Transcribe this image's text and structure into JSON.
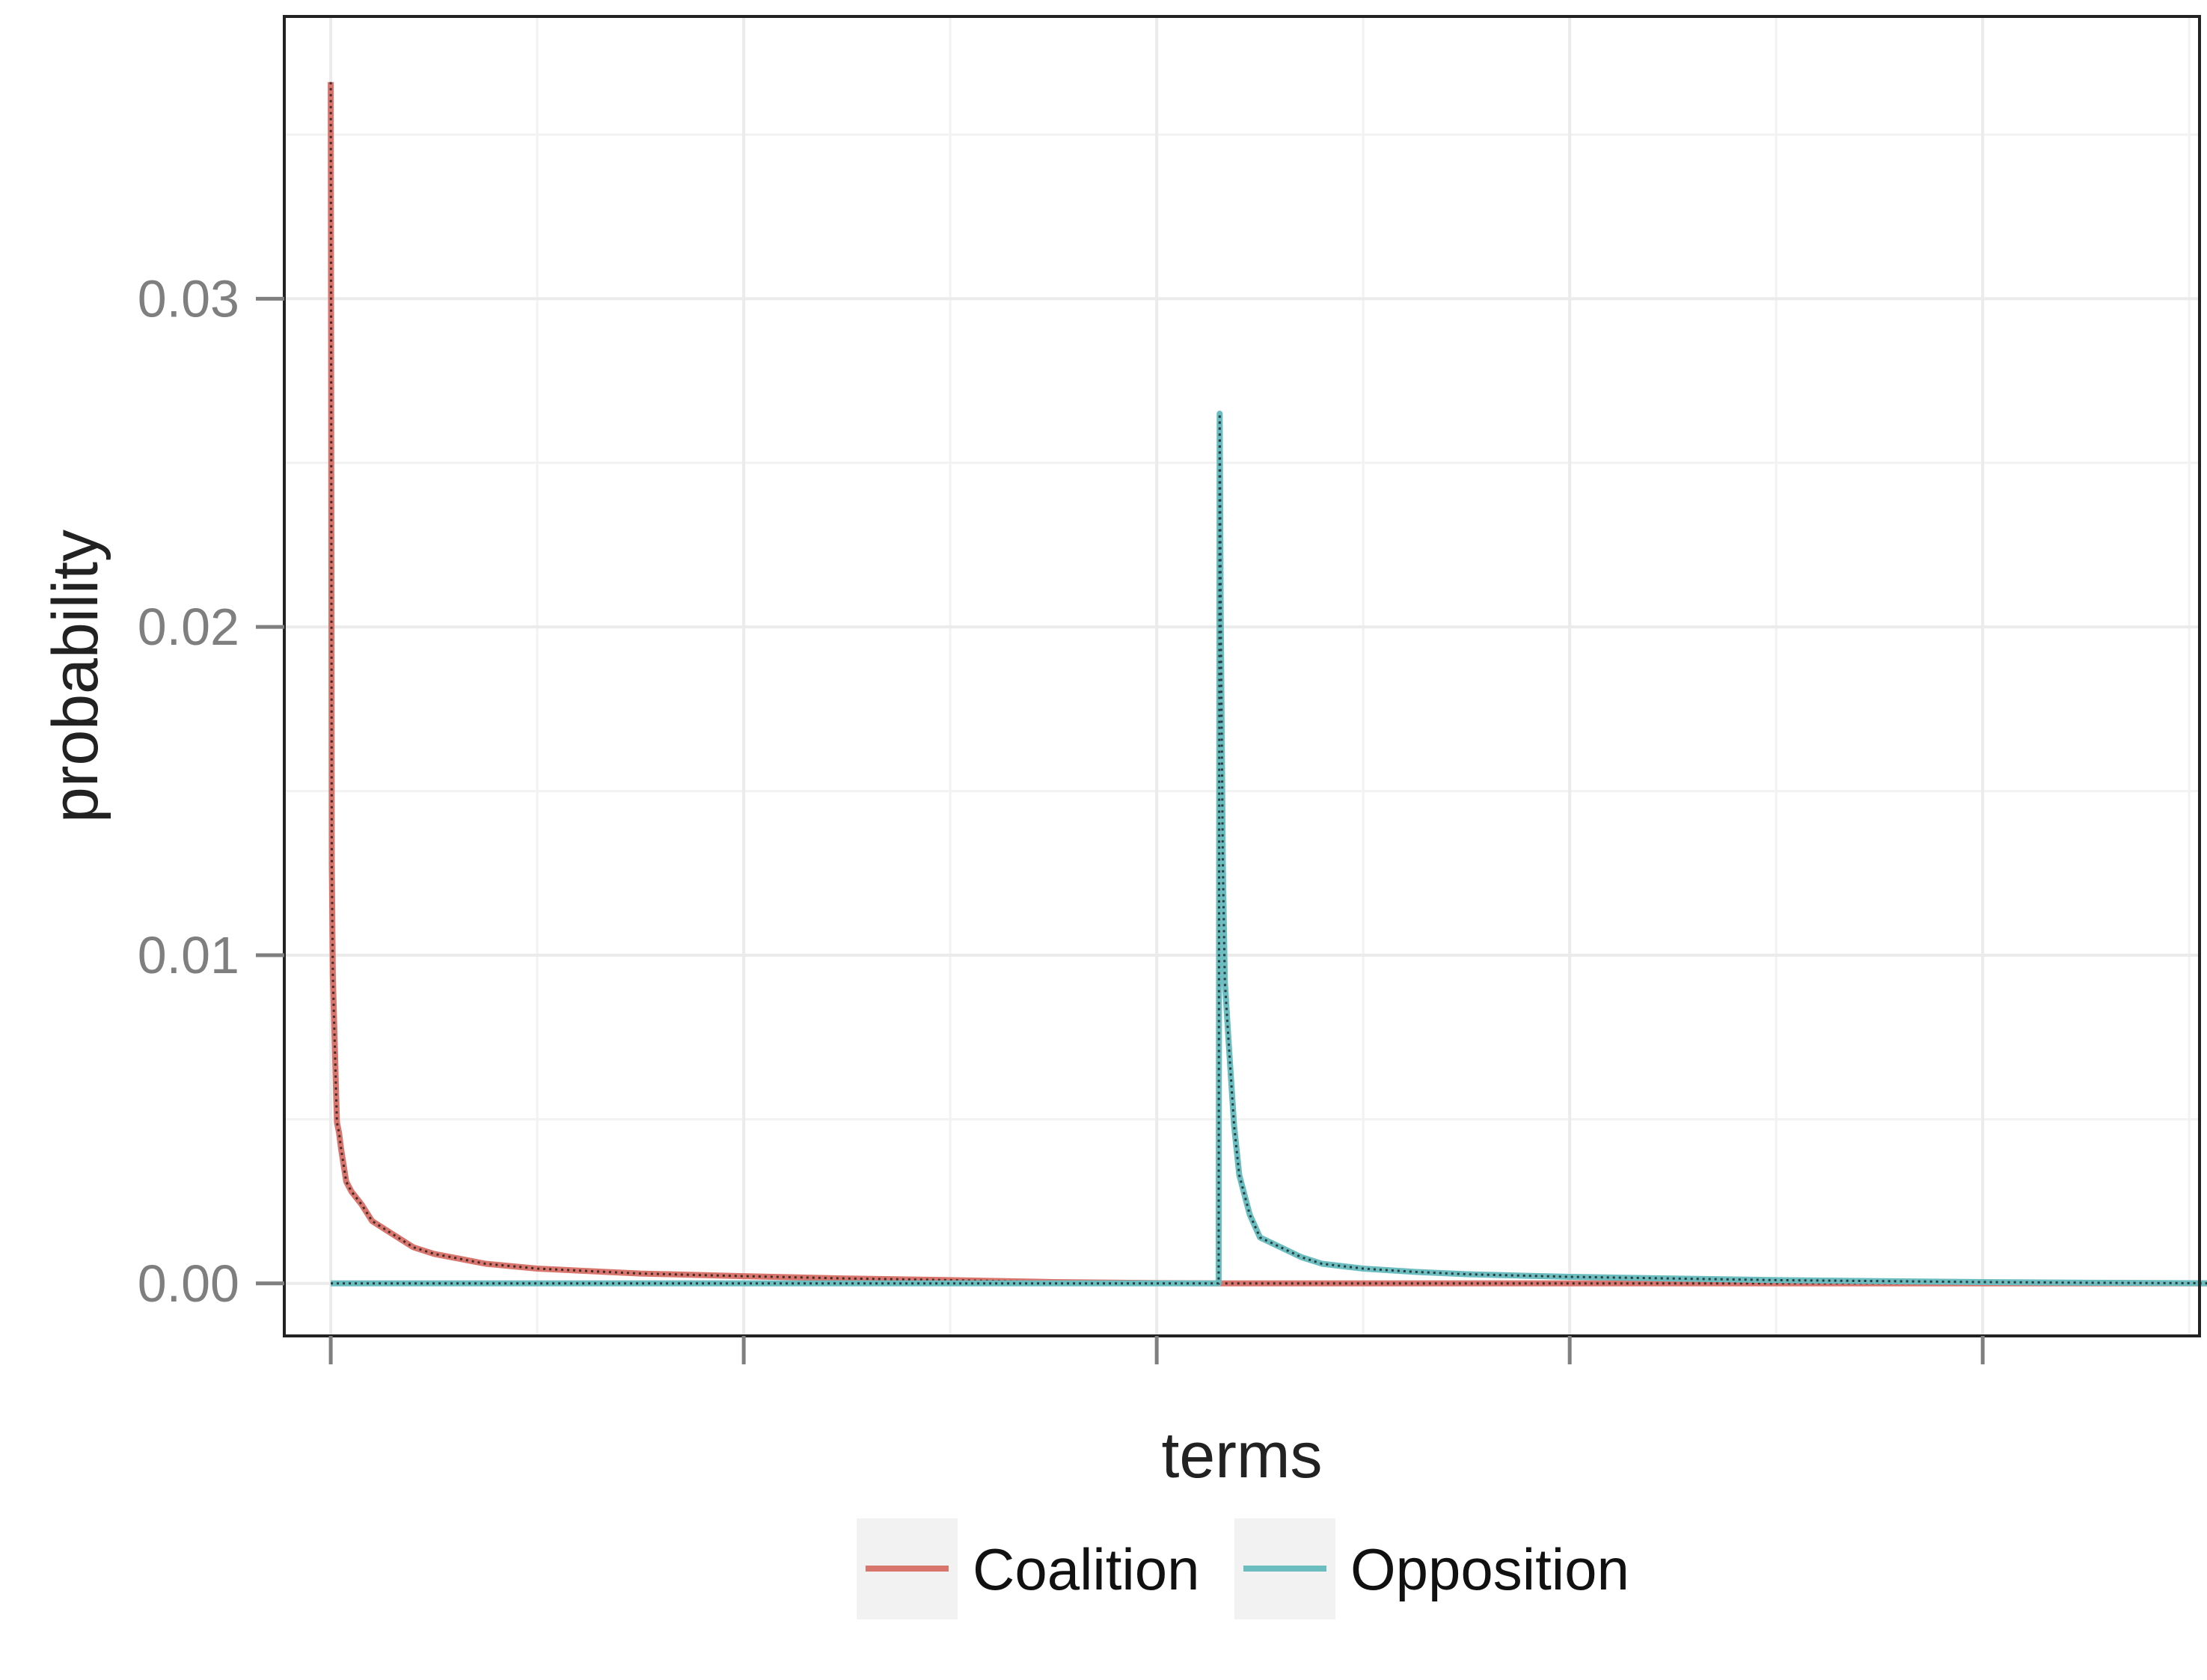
{
  "chart_data": {
    "type": "line",
    "title": "",
    "xlabel": "terms",
    "ylabel": "probability",
    "ylim": [
      -0.0016,
      0.0386
    ],
    "yticks": [
      0.0,
      0.01,
      0.02,
      0.03
    ],
    "ytick_labels": [
      "0.00",
      "0.01",
      "0.02",
      "0.03"
    ],
    "xlim": [
      -45,
      1810
    ],
    "xticks": [
      0,
      400,
      800,
      1200,
      1600
    ],
    "xtick_labels": [
      "",
      "",
      "",
      "",
      ""
    ],
    "grid": true,
    "legend": {
      "position": "bottom"
    },
    "series": [
      {
        "name": "Coalition",
        "color": "#d8766e",
        "x": [
          0,
          1,
          2,
          3,
          4,
          5,
          6,
          8,
          10,
          15,
          20,
          30,
          40,
          60,
          80,
          100,
          150,
          200,
          300,
          400,
          500,
          600,
          700,
          800,
          860,
          1000,
          1200,
          1400,
          1600,
          1850
        ],
        "values": [
          0.0366,
          0.0128,
          0.0094,
          0.0083,
          0.0072,
          0.006,
          0.0049,
          0.0046,
          0.0041,
          0.0031,
          0.0028,
          0.0024,
          0.0019,
          0.0015,
          0.0011,
          0.0009,
          0.0006,
          0.00045,
          0.0003,
          0.00022,
          0.00015,
          0.0001,
          4e-05,
          1e-05,
          0.0,
          0.0,
          0.0,
          0.0,
          0.0,
          0.0
        ]
      },
      {
        "name": "Opposition",
        "color": "#6bbdc0",
        "x": [
          0,
          200,
          400,
          600,
          860,
          861,
          862,
          864,
          866,
          870,
          875,
          880,
          890,
          900,
          920,
          940,
          960,
          1000,
          1050,
          1100,
          1200,
          1300,
          1400,
          1500,
          1600,
          1700,
          1850
        ],
        "values": [
          0.0,
          0.0,
          0.0,
          0.0,
          0.0,
          0.0265,
          0.0204,
          0.0128,
          0.0092,
          0.0072,
          0.0048,
          0.0033,
          0.0021,
          0.0014,
          0.0011,
          0.0008,
          0.0006,
          0.00045,
          0.00035,
          0.00028,
          0.0002,
          0.00015,
          0.0001,
          7e-05,
          4e-05,
          2e-05,
          0.0
        ]
      }
    ]
  }
}
